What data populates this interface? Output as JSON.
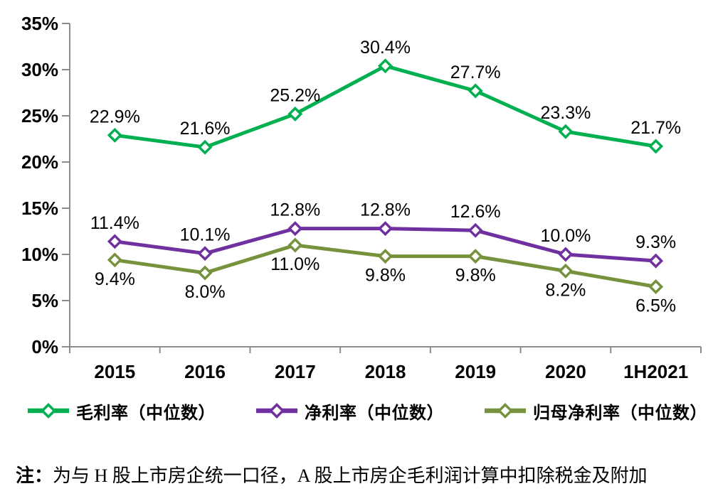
{
  "chart_data": {
    "type": "line",
    "categories": [
      "2015",
      "2016",
      "2017",
      "2018",
      "2019",
      "2020",
      "1H2021"
    ],
    "series": [
      {
        "name": "毛利率（中位数）",
        "color": "#00B050",
        "values": [
          22.9,
          21.6,
          25.2,
          30.4,
          27.7,
          23.3,
          21.7
        ],
        "data_label_position": "above"
      },
      {
        "name": "净利率（中位数）",
        "color": "#7030A0",
        "values": [
          11.4,
          10.1,
          12.8,
          12.8,
          12.6,
          10.0,
          9.3
        ],
        "data_label_position": "above"
      },
      {
        "name": "归母净利率（中位数）",
        "color": "#76923C",
        "values": [
          9.4,
          8.0,
          11.0,
          9.8,
          9.8,
          8.2,
          6.5
        ],
        "data_label_position": "below"
      }
    ],
    "ylim": [
      0,
      35
    ],
    "ytick_step": 5,
    "ytick_labels": [
      "0%",
      "5%",
      "10%",
      "15%",
      "20%",
      "25%",
      "30%",
      "35%"
    ],
    "value_format": "percent_1dp",
    "marker": "hollow-diamond",
    "grid": false,
    "legend_position": "bottom",
    "axis_color": "#8C8C8C",
    "text_color": "#000000",
    "title": "",
    "xlabel": "",
    "ylabel": ""
  },
  "note": {
    "label": "注：",
    "text": "为与 H 股上市房企统一口径，A 股上市房企毛利润计算中扣除税金及附加"
  }
}
